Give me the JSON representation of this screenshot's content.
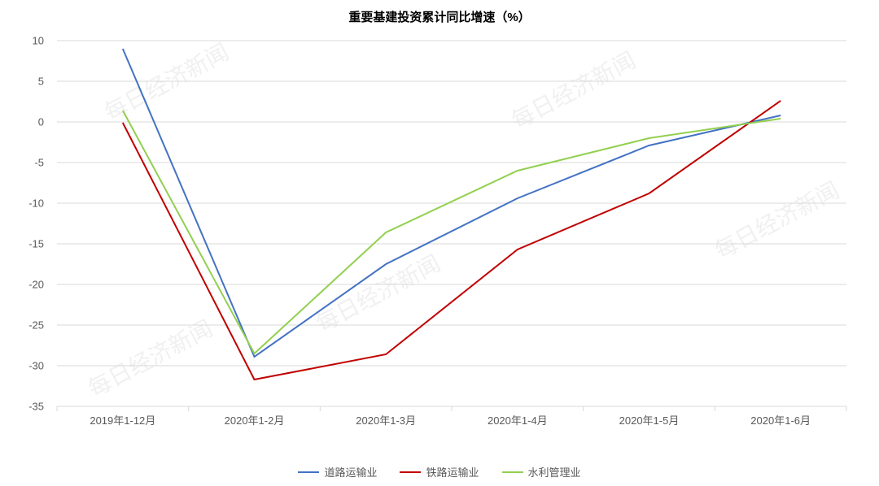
{
  "chart": {
    "type": "line",
    "title": "重要基建投资累计同比增速（%）",
    "title_fontsize": 15,
    "title_fontweight": "bold",
    "background_color": "#ffffff",
    "grid_color": "#d9d9d9",
    "axis_color": "#d9d9d9",
    "tick_fontsize": 13,
    "tick_color": "#595959",
    "ylim": [
      -35,
      10
    ],
    "ytick_step": 5,
    "yticks": [
      -35,
      -30,
      -25,
      -20,
      -15,
      -10,
      -5,
      0,
      5,
      10
    ],
    "categories": [
      "2019年1-12月",
      "2020年1-2月",
      "2020年1-3月",
      "2020年1-4月",
      "2020年1-5月",
      "2020年1-6月"
    ],
    "series": [
      {
        "name": "道路运输业",
        "color": "#4472c4",
        "line_width": 2,
        "values": [
          9.0,
          -28.9,
          -17.5,
          -9.4,
          -2.9,
          0.8
        ]
      },
      {
        "name": "铁路运输业",
        "color": "#c00000",
        "line_width": 2,
        "values": [
          -0.1,
          -31.7,
          -28.6,
          -15.7,
          -8.8,
          2.6
        ]
      },
      {
        "name": "水利管理业",
        "color": "#92d050",
        "line_width": 2,
        "values": [
          1.4,
          -28.5,
          -13.6,
          -6.0,
          -2.0,
          0.4
        ]
      }
    ],
    "legend_position": "bottom",
    "watermark_text": "每日经济新闻",
    "watermark_color": "rgba(150,150,150,0.14)",
    "watermark_fontsize": 28
  }
}
